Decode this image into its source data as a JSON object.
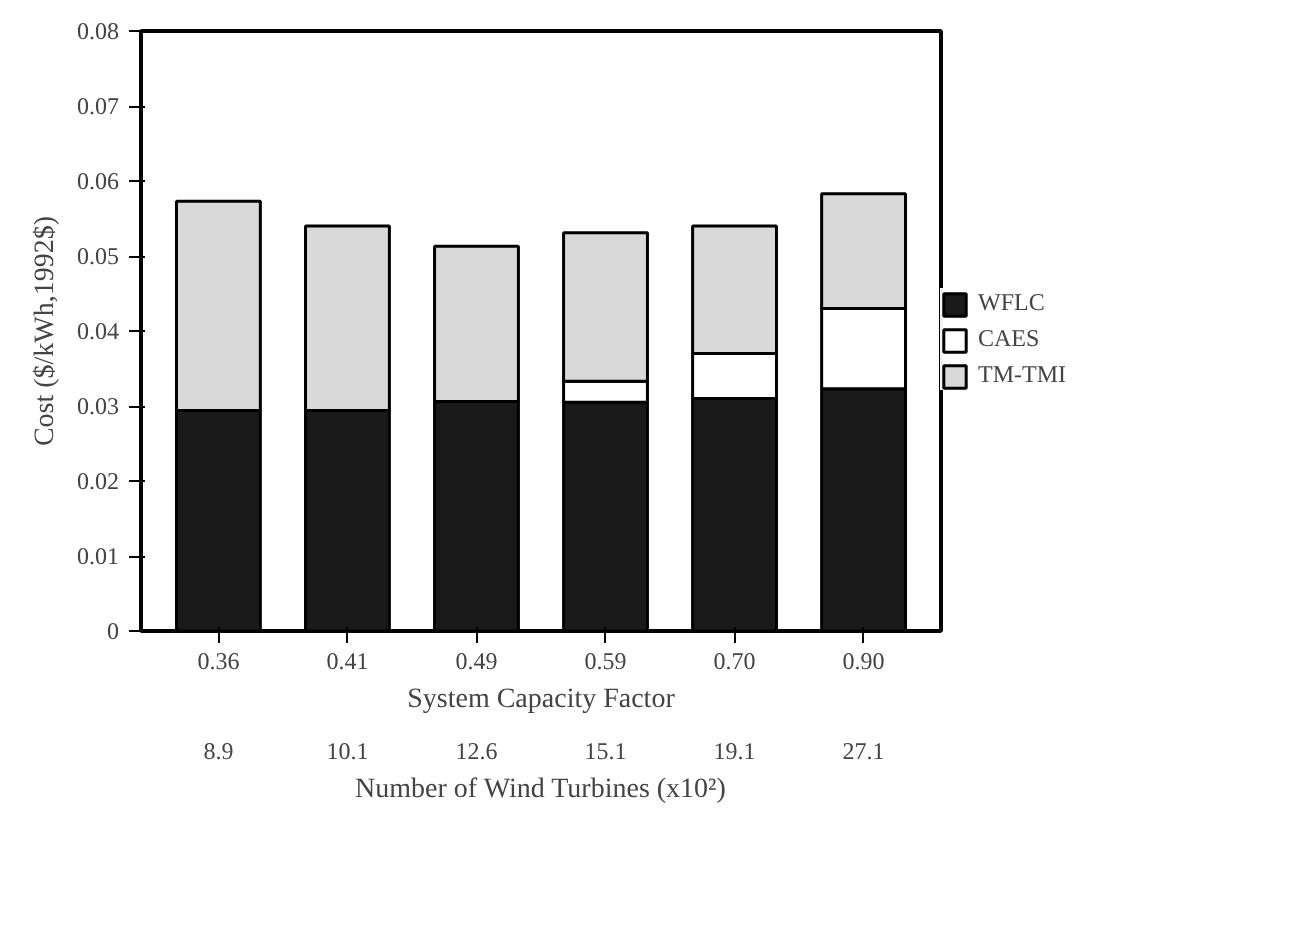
{
  "chart_data": {
    "type": "bar",
    "stacked": true,
    "xlabel": "System Capacity Factor",
    "ylabel": "Cost ($/kWh,1992$)",
    "categories": [
      "0.36",
      "0.41",
      "0.49",
      "0.59",
      "0.70",
      "0.90"
    ],
    "series": [
      {
        "name": "WFLC",
        "color": "#1a1a1a",
        "values": [
          0.0294,
          0.0294,
          0.0306,
          0.0305,
          0.031,
          0.0323
        ]
      },
      {
        "name": "CAES",
        "color": "#ffffff",
        "values": [
          0,
          0,
          0,
          0.0028,
          0.006,
          0.0107
        ]
      },
      {
        "name": "TM-TMI",
        "color": "#d9d9d9",
        "values": [
          0.0279,
          0.0246,
          0.0207,
          0.0198,
          0.017,
          0.0153
        ]
      }
    ],
    "ylim": [
      0,
      0.08
    ],
    "yticks": [
      0,
      0.01,
      0.02,
      0.03,
      0.04,
      0.05,
      0.06,
      0.07,
      0.08
    ],
    "legend": "right",
    "grid": false,
    "annotations": [
      "8.9",
      "10.1",
      "12.6",
      "15.1",
      "19.1",
      "27.1",
      "Number of Wind Turbines (x10²)"
    ]
  }
}
